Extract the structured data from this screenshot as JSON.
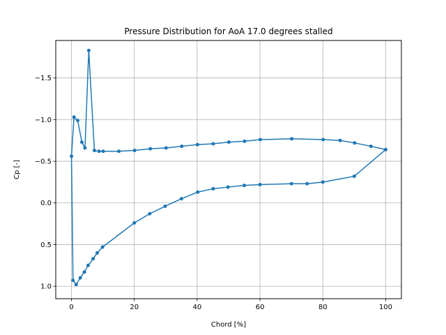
{
  "chart_data": {
    "type": "line",
    "title": "Pressure Distribution for AoA 17.0 degrees stalled",
    "xlabel": "Chord [%]",
    "ylabel": "Cp [-]",
    "xlim": [
      -5,
      105
    ],
    "ylim": [
      1.15,
      -1.95
    ],
    "y_inverted": true,
    "grid": true,
    "xticks": [
      0,
      20,
      40,
      60,
      80,
      100
    ],
    "yticks": [
      -1.5,
      -1.0,
      -0.5,
      0.0,
      0.5,
      1.0
    ],
    "xtick_labels": [
      "0",
      "20",
      "40",
      "60",
      "80",
      "100"
    ],
    "ytick_labels": [
      "−1.5",
      "−1.0",
      "−0.5",
      "0.0",
      "0.5",
      "1.0"
    ],
    "series_color": "#1f77b4",
    "series": [
      {
        "x": [
          100,
          95.3,
          90.1,
          85.5,
          80.1,
          70.1,
          60.1,
          55.1,
          50.1,
          45.1,
          40.1,
          35.1,
          30.1,
          25.1,
          20.1,
          15.1,
          10.1,
          8.8,
          7.3,
          5.5,
          4.3,
          3.3,
          2.0,
          0.8,
          0.0,
          0.5,
          1.5,
          2.8,
          4.1,
          5.3,
          6.9,
          8.2,
          9.9,
          20.0,
          24.9,
          29.8,
          35.0,
          40.2,
          45.1,
          49.8,
          55.0,
          60.0,
          70.0,
          75.0,
          80.0,
          90.0,
          100
        ],
        "y": [
          -0.64,
          -0.68,
          -0.72,
          -0.75,
          -0.76,
          -0.77,
          -0.76,
          -0.74,
          -0.73,
          -0.71,
          -0.7,
          -0.68,
          -0.66,
          -0.65,
          -0.63,
          -0.62,
          -0.62,
          -0.62,
          -0.63,
          -1.83,
          -0.66,
          -0.73,
          -0.99,
          -1.03,
          -0.56,
          0.93,
          0.98,
          0.9,
          0.83,
          0.75,
          0.67,
          0.6,
          0.53,
          0.24,
          0.13,
          0.04,
          -0.05,
          -0.13,
          -0.17,
          -0.19,
          -0.21,
          -0.22,
          -0.23,
          -0.23,
          -0.25,
          -0.32,
          -0.64
        ]
      }
    ]
  }
}
